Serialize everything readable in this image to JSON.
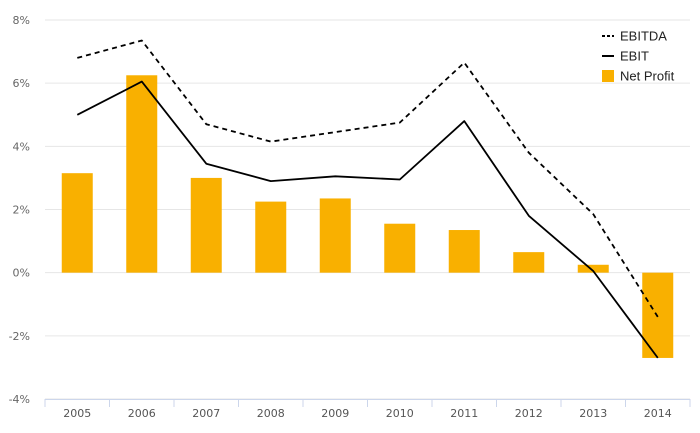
{
  "chart_data": {
    "type": "bar",
    "categories": [
      "2005",
      "2006",
      "2007",
      "2008",
      "2009",
      "2010",
      "2011",
      "2012",
      "2013",
      "2014"
    ],
    "series": [
      {
        "name": "EBITDA",
        "kind": "line",
        "style": "dashed",
        "color": "#000000",
        "values": [
          6.8,
          7.35,
          4.7,
          4.15,
          4.45,
          4.75,
          6.65,
          3.8,
          1.85,
          -1.4
        ]
      },
      {
        "name": "EBIT",
        "kind": "line",
        "style": "solid",
        "color": "#000000",
        "values": [
          5.0,
          6.05,
          3.45,
          2.9,
          3.05,
          2.95,
          4.8,
          1.8,
          0.05,
          -2.7
        ]
      },
      {
        "name": "Net Profit",
        "kind": "bar",
        "color": "#f9b000",
        "values": [
          3.15,
          6.25,
          3.0,
          2.25,
          2.35,
          1.55,
          1.35,
          0.65,
          0.25,
          -2.7
        ]
      }
    ],
    "yticks": [
      "8%",
      "6%",
      "4%",
      "2%",
      "0%",
      "-2%",
      "-4%"
    ],
    "ytick_values": [
      8,
      6,
      4,
      2,
      0,
      -2,
      -4
    ],
    "ylim": [
      -4,
      8
    ],
    "grid": true,
    "legend_position": "top-right"
  }
}
